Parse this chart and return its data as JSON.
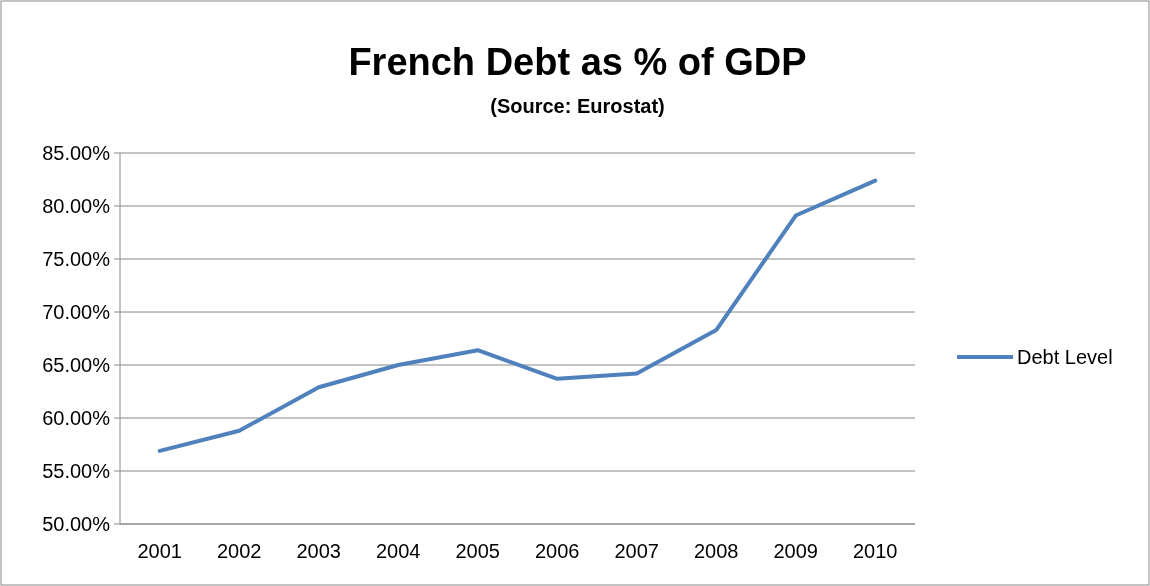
{
  "chart_data": {
    "type": "line",
    "title": "French Debt as % of GDP",
    "subtitle": "(Source: Eurostat)",
    "categories": [
      "2001",
      "2002",
      "2003",
      "2004",
      "2005",
      "2006",
      "2007",
      "2008",
      "2009",
      "2010"
    ],
    "series": [
      {
        "name": "Debt Level",
        "color": "#4f81bd",
        "values": [
          56.9,
          58.8,
          62.9,
          65.0,
          66.4,
          63.7,
          64.2,
          68.3,
          79.1,
          82.4
        ]
      }
    ],
    "ylim": [
      50,
      85
    ],
    "yticks": [
      {
        "value": 50,
        "label": "50.00%"
      },
      {
        "value": 55,
        "label": "55.00%"
      },
      {
        "value": 60,
        "label": "60.00%"
      },
      {
        "value": 65,
        "label": "65.00%"
      },
      {
        "value": 70,
        "label": "70.00%"
      },
      {
        "value": 75,
        "label": "75.00%"
      },
      {
        "value": 80,
        "label": "80.00%"
      },
      {
        "value": 85,
        "label": "85.00%"
      }
    ],
    "grid": "y",
    "legend": "right",
    "line_style": "solid"
  }
}
